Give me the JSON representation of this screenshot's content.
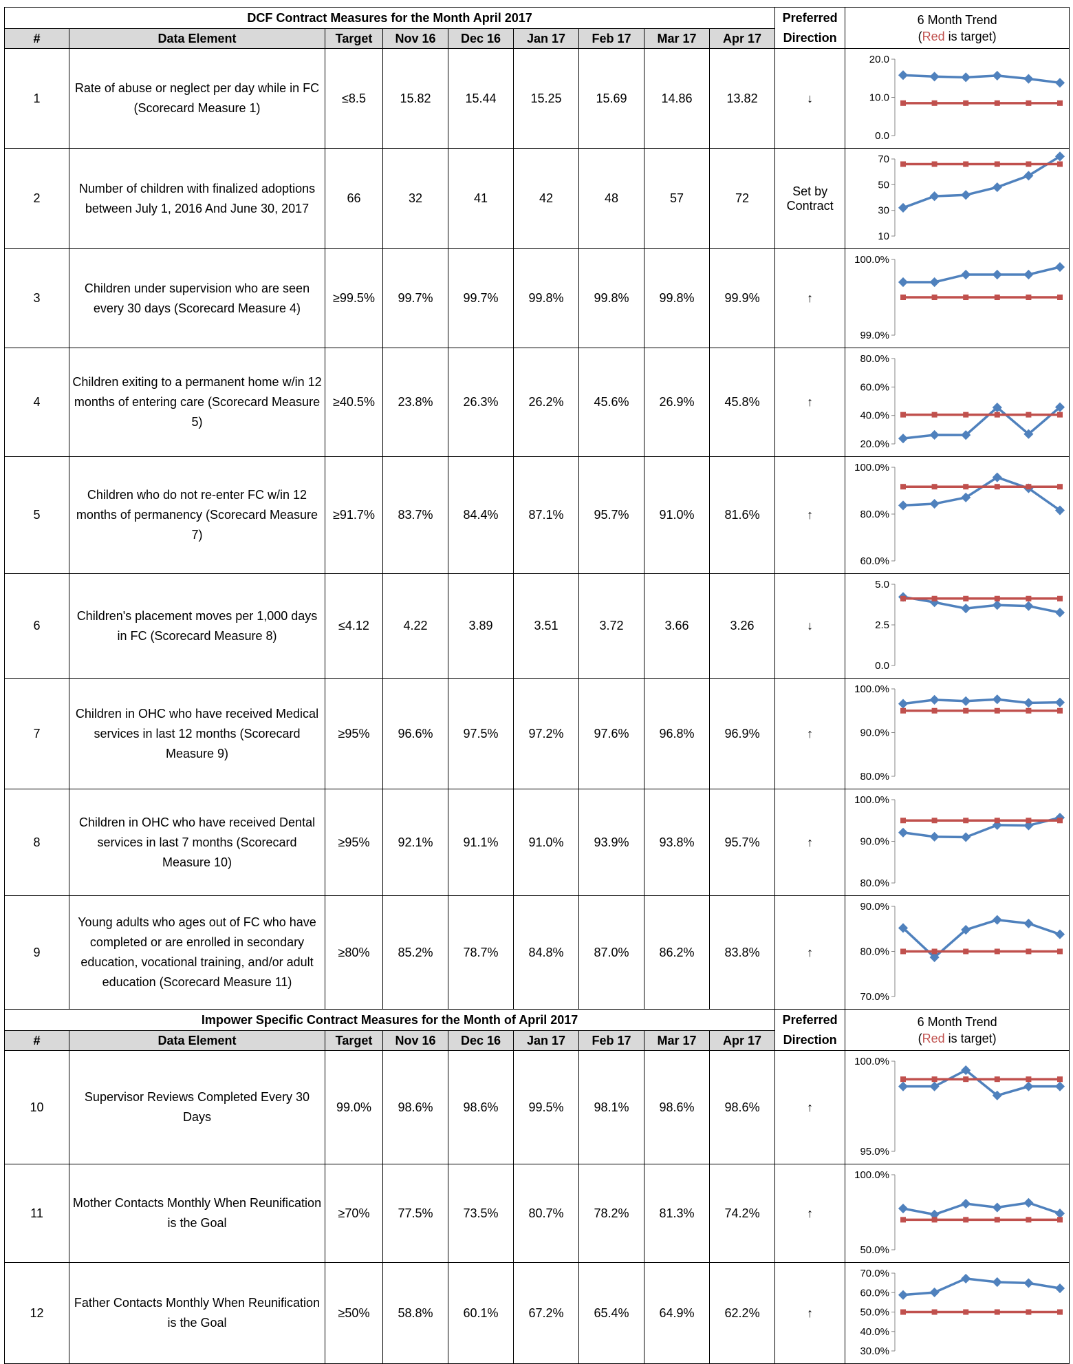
{
  "sections": [
    {
      "title": "DCF Contract Measures for the Month April 2017",
      "preferred_label": "Preferred",
      "direction_label": "Direction",
      "trend_title": "6 Month Trend",
      "trend_red": "Red",
      "trend_rest": " is target)",
      "trend_open": "(",
      "columns": [
        "#",
        "Data Element",
        "Target",
        "Nov 16",
        "Dec 16",
        "Jan 17",
        "Feb 17",
        "Mar 17",
        "Apr 17"
      ],
      "rows": [
        {
          "num": "1",
          "element": "Rate of abuse or neglect per day while in FC (Scorecard Measure 1)",
          "target": "≤8.5",
          "values": [
            "15.82",
            "15.44",
            "15.25",
            "15.69",
            "14.86",
            "13.82"
          ],
          "direction": "↓"
        },
        {
          "num": "2",
          "element": "Number of children with finalized adoptions between July 1, 2016 And June 30, 2017",
          "target": "66",
          "values": [
            "32",
            "41",
            "42",
            "48",
            "57",
            "72"
          ],
          "direction": "Set by Contract"
        },
        {
          "num": "3",
          "element": "Children under supervision who are seen every 30 days (Scorecard Measure 4)",
          "target": "≥99.5%",
          "values": [
            "99.7%",
            "99.7%",
            "99.8%",
            "99.8%",
            "99.8%",
            "99.9%"
          ],
          "direction": "↑"
        },
        {
          "num": "4",
          "element": "Children exiting to a permanent home w/in 12 months of entering care (Scorecard Measure 5)",
          "target": "≥40.5%",
          "values": [
            "23.8%",
            "26.3%",
            "26.2%",
            "45.6%",
            "26.9%",
            "45.8%"
          ],
          "direction": "↑"
        },
        {
          "num": "5",
          "element": "Children who do not re-enter FC w/in 12 months of permanency (Scorecard Measure 7)",
          "target": "≥91.7%",
          "values": [
            "83.7%",
            "84.4%",
            "87.1%",
            "95.7%",
            "91.0%",
            "81.6%"
          ],
          "direction": "↑"
        },
        {
          "num": "6",
          "element": "Children's placement moves per 1,000 days in FC (Scorecard  Measure 8)",
          "target": "≤4.12",
          "values": [
            "4.22",
            "3.89",
            "3.51",
            "3.72",
            "3.66",
            "3.26"
          ],
          "direction": "↓"
        },
        {
          "num": "7",
          "element": "Children in OHC who have received Medical services in last 12 months (Scorecard Measure 9)",
          "target": "≥95%",
          "values": [
            "96.6%",
            "97.5%",
            "97.2%",
            "97.6%",
            "96.8%",
            "96.9%"
          ],
          "direction": "↑"
        },
        {
          "num": "8",
          "element": "Children in OHC who have received Dental services in last 7 months (Scorecard Measure 10)",
          "target": "≥95%",
          "values": [
            "92.1%",
            "91.1%",
            "91.0%",
            "93.9%",
            "93.8%",
            "95.7%"
          ],
          "direction": "↑"
        },
        {
          "num": "9",
          "element": "Young adults who ages out of FC who have completed or are enrolled in secondary education, vocational training, and/or adult education (Scorecard Measure 11)",
          "target": "≥80%",
          "values": [
            "85.2%",
            "78.7%",
            "84.8%",
            "87.0%",
            "86.2%",
            "83.8%"
          ],
          "direction": "↑"
        }
      ]
    },
    {
      "title": "Impower Specific Contract Measures for the Month of April 2017",
      "preferred_label": "Preferred",
      "direction_label": "Direction",
      "trend_title": "6 Month Trend",
      "trend_red": "Red",
      "trend_rest": " is target)",
      "trend_open": "(",
      "columns": [
        "#",
        "Data Element",
        "Target",
        "Nov 16",
        "Dec 16",
        "Jan 17",
        "Feb 17",
        "Mar 17",
        "Apr 17"
      ],
      "rows": [
        {
          "num": "10",
          "element": "Supervisor Reviews Completed Every 30 Days",
          "target": "99.0%",
          "values": [
            "98.6%",
            "98.6%",
            "99.5%",
            "98.1%",
            "98.6%",
            "98.6%"
          ],
          "direction": "↑"
        },
        {
          "num": "11",
          "element": "Mother Contacts Monthly When Reunification is the Goal",
          "target": "≥70%",
          "values": [
            "77.5%",
            "73.5%",
            "80.7%",
            "78.2%",
            "81.3%",
            "74.2%"
          ],
          "direction": "↑"
        },
        {
          "num": "12",
          "element": "Father Contacts Monthly When Reunification is the Goal",
          "target": "≥50%",
          "values": [
            "58.8%",
            "60.1%",
            "67.2%",
            "65.4%",
            "64.9%",
            "62.2%"
          ],
          "direction": "↑"
        }
      ]
    }
  ],
  "chart_data": [
    {
      "type": "line",
      "row": "1",
      "ylim": [
        0,
        20
      ],
      "ticks": [
        "20.0",
        "10.0",
        "0.0"
      ],
      "series": [
        {
          "values": [
            15.82,
            15.44,
            15.25,
            15.69,
            14.86,
            13.82
          ],
          "color": "#4f81bd"
        },
        {
          "values": [
            8.5,
            8.5,
            8.5,
            8.5,
            8.5,
            8.5
          ],
          "color": "#c0504d"
        }
      ]
    },
    {
      "type": "line",
      "row": "2",
      "ylim": [
        10,
        70
      ],
      "ticks": [
        "70",
        "50",
        "30",
        "10"
      ],
      "series": [
        {
          "values": [
            32,
            41,
            42,
            48,
            57,
            72
          ],
          "color": "#4f81bd"
        },
        {
          "values": [
            66,
            66,
            66,
            66,
            66,
            66
          ],
          "color": "#c0504d"
        }
      ]
    },
    {
      "type": "line",
      "row": "3",
      "ylim": [
        99.0,
        100.0
      ],
      "ticks": [
        "100.0%",
        "99.0%"
      ],
      "series": [
        {
          "values": [
            99.7,
            99.7,
            99.8,
            99.8,
            99.8,
            99.9
          ],
          "color": "#4f81bd"
        },
        {
          "values": [
            99.5,
            99.5,
            99.5,
            99.5,
            99.5,
            99.5
          ],
          "color": "#c0504d"
        }
      ]
    },
    {
      "type": "line",
      "row": "4",
      "ylim": [
        20,
        80
      ],
      "ticks": [
        "80.0%",
        "60.0%",
        "40.0%",
        "20.0%"
      ],
      "series": [
        {
          "values": [
            23.8,
            26.3,
            26.2,
            45.6,
            26.9,
            45.8
          ],
          "color": "#4f81bd"
        },
        {
          "values": [
            40.5,
            40.5,
            40.5,
            40.5,
            40.5,
            40.5
          ],
          "color": "#c0504d"
        }
      ]
    },
    {
      "type": "line",
      "row": "5",
      "ylim": [
        60,
        100
      ],
      "ticks": [
        "100.0%",
        "80.0%",
        "60.0%"
      ],
      "series": [
        {
          "values": [
            83.7,
            84.4,
            87.1,
            95.7,
            91.0,
            81.6
          ],
          "color": "#4f81bd"
        },
        {
          "values": [
            91.7,
            91.7,
            91.7,
            91.7,
            91.7,
            91.7
          ],
          "color": "#c0504d"
        }
      ]
    },
    {
      "type": "line",
      "row": "6",
      "ylim": [
        0,
        5
      ],
      "ticks": [
        "5.0",
        "2.5",
        "0.0"
      ],
      "series": [
        {
          "values": [
            4.22,
            3.89,
            3.51,
            3.72,
            3.66,
            3.26
          ],
          "color": "#4f81bd"
        },
        {
          "values": [
            4.12,
            4.12,
            4.12,
            4.12,
            4.12,
            4.12
          ],
          "color": "#c0504d"
        }
      ]
    },
    {
      "type": "line",
      "row": "7",
      "ylim": [
        80,
        100
      ],
      "ticks": [
        "100.0%",
        "90.0%",
        "80.0%"
      ],
      "series": [
        {
          "values": [
            96.6,
            97.5,
            97.2,
            97.6,
            96.8,
            96.9
          ],
          "color": "#4f81bd"
        },
        {
          "values": [
            95,
            95,
            95,
            95,
            95,
            95
          ],
          "color": "#c0504d"
        }
      ]
    },
    {
      "type": "line",
      "row": "8",
      "ylim": [
        80,
        100
      ],
      "ticks": [
        "100.0%",
        "90.0%",
        "80.0%"
      ],
      "series": [
        {
          "values": [
            92.1,
            91.1,
            91.0,
            93.9,
            93.8,
            95.7
          ],
          "color": "#4f81bd"
        },
        {
          "values": [
            95,
            95,
            95,
            95,
            95,
            95
          ],
          "color": "#c0504d"
        }
      ]
    },
    {
      "type": "line",
      "row": "9",
      "ylim": [
        70,
        90
      ],
      "ticks": [
        "90.0%",
        "80.0%",
        "70.0%"
      ],
      "series": [
        {
          "values": [
            85.2,
            78.7,
            84.8,
            87.0,
            86.2,
            83.8
          ],
          "color": "#4f81bd"
        },
        {
          "values": [
            80,
            80,
            80,
            80,
            80,
            80
          ],
          "color": "#c0504d"
        }
      ]
    },
    {
      "type": "line",
      "row": "10",
      "ylim": [
        95,
        100
      ],
      "ticks": [
        "100.0%",
        "95.0%"
      ],
      "series": [
        {
          "values": [
            98.6,
            98.6,
            99.5,
            98.1,
            98.6,
            98.6
          ],
          "color": "#4f81bd"
        },
        {
          "values": [
            99,
            99,
            99,
            99,
            99,
            99
          ],
          "color": "#c0504d"
        }
      ]
    },
    {
      "type": "line",
      "row": "11",
      "ylim": [
        50,
        100
      ],
      "ticks": [
        "100.0%",
        "50.0%"
      ],
      "series": [
        {
          "values": [
            77.5,
            73.5,
            80.7,
            78.2,
            81.3,
            74.2
          ],
          "color": "#4f81bd"
        },
        {
          "values": [
            70,
            70,
            70,
            70,
            70,
            70
          ],
          "color": "#c0504d"
        }
      ]
    },
    {
      "type": "line",
      "row": "12",
      "ylim": [
        30,
        70
      ],
      "ticks": [
        "70.0%",
        "60.0%",
        "50.0%",
        "40.0%",
        "30.0%"
      ],
      "series": [
        {
          "values": [
            58.8,
            60.1,
            67.2,
            65.4,
            64.9,
            62.2
          ],
          "color": "#4f81bd"
        },
        {
          "values": [
            50,
            50,
            50,
            50,
            50,
            50
          ],
          "color": "#c0504d"
        }
      ]
    }
  ]
}
